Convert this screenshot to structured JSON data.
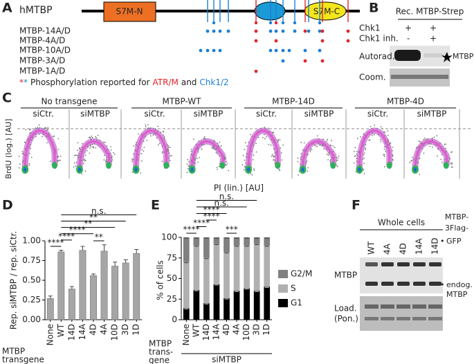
{
  "panel_labels": [
    "A",
    "B",
    "C",
    "D",
    "E",
    "F"
  ],
  "panel_a": {
    "protein": "hMTBP",
    "domains": [
      "S7M-N",
      "S7M-C"
    ],
    "mutants": [
      "MTBP-14A/D",
      "MTBP-4A/D",
      "MTBP-10A/D",
      "MTBP-3A/D",
      "MTBP-1A/D"
    ],
    "legend": {
      "red_star": "*",
      "blue_star": "*",
      "text": "Phosphorylation reported for",
      "kinase_1": "ATR/M",
      "joiner": "and",
      "kinase_2": "Chk1/2"
    }
  },
  "panel_b": {
    "title": "Rec. MTBP-Strep",
    "rows": [
      {
        "label": "Chk1",
        "lanes": [
          "+",
          "+"
        ]
      },
      {
        "label": "Chk1 inh.",
        "lanes": [
          "-",
          "+"
        ]
      }
    ],
    "blots": [
      "Autorad.",
      "Coom."
    ],
    "band": "MTBP"
  },
  "panel_c": {
    "conditions": [
      "No transgene",
      "MTBP-WT",
      "MTBP-14D",
      "MTBP-4D"
    ],
    "treatments": [
      "siCtr.",
      "siMTBP"
    ],
    "y_label": "BrdU (log.) [AU]",
    "x_label": "PI (lin.) [AU]"
  },
  "chart_data": [
    {
      "type": "bar",
      "y_label": "Rep. siMTBP / rep. siCtr.",
      "x_label": [
        "MTBP",
        "transgene"
      ],
      "categories": [
        "None",
        "WT",
        "14D",
        "14A",
        "4D",
        "4A",
        "10D",
        "3D",
        "1D"
      ],
      "values": [
        0.27,
        0.86,
        0.39,
        0.88,
        0.56,
        0.87,
        0.68,
        0.72,
        0.84
      ],
      "errors": [
        0.03,
        0.02,
        0.03,
        0.05,
        0.02,
        0.08,
        0.05,
        0.04,
        0.05
      ],
      "color": "#a6a6a6",
      "ylim": [
        0,
        1
      ],
      "yticks": [
        {
          "value": 0,
          "label": "0.00"
        },
        {
          "value": 0.25,
          "label": "0.25"
        },
        {
          "value": 0.5,
          "label": "0.50"
        },
        {
          "value": 0.75,
          "label": "0.75"
        },
        {
          "value": 1,
          "label": "1.00"
        }
      ],
      "annotations": [
        {
          "text": "****",
          "from": "None",
          "to": "WT"
        },
        {
          "text": "****",
          "from": "WT",
          "to": "14D"
        },
        {
          "text": "**",
          "from": "4D",
          "to": "4A"
        },
        {
          "text": "****",
          "from": "WT",
          "to": "4D"
        },
        {
          "text": "**",
          "from": "WT",
          "to": "10D"
        },
        {
          "text": "**",
          "from": "WT",
          "to": "3D"
        },
        {
          "text": "n.s.",
          "from": "WT",
          "to": "1D"
        }
      ]
    },
    {
      "type": "stacked_bar",
      "y_label": "% of cells",
      "x_label": [
        "MTBP",
        "trans-",
        "gene"
      ],
      "group_label": "siMTBP",
      "categories": [
        "None",
        "WT",
        "14D",
        "14A",
        "4D",
        "4A",
        "10D",
        "3D",
        "1D"
      ],
      "series": [
        {
          "name": "G1",
          "color": "#000000",
          "values": [
            14,
            36,
            20,
            43,
            26,
            35,
            38,
            35,
            40
          ]
        },
        {
          "name": "S",
          "color": "#b0b0b0",
          "values": [
            56,
            54,
            55,
            49,
            56,
            55,
            52,
            57,
            50
          ]
        },
        {
          "name": "G2/M",
          "color": "#808080",
          "values": [
            30,
            10,
            25,
            8,
            18,
            10,
            10,
            8,
            10
          ]
        }
      ],
      "ylim": [
        0,
        100
      ],
      "yticks": [
        0,
        25,
        50,
        75,
        100
      ],
      "annotations": [
        {
          "text": "****",
          "from": "None",
          "to": "WT"
        },
        {
          "text": "****",
          "from": "WT",
          "to": "14D"
        },
        {
          "text": "****",
          "from": "14D",
          "to": "14A"
        },
        {
          "text": "***",
          "from": "4D",
          "to": "4A"
        },
        {
          "text": "****",
          "from": "WT",
          "to": "4D"
        },
        {
          "text": "n.s.",
          "from": "WT",
          "to": "10D"
        },
        {
          "text": "n.s.",
          "from": "WT",
          "to": "3D"
        }
      ]
    }
  ],
  "panel_f": {
    "title": "Whole cells",
    "lanes": [
      "WT",
      "4A",
      "4D",
      "14A",
      "14D"
    ],
    "protein": "MTBP",
    "construct": [
      "MTBP-",
      "3Flag-",
      "GFP"
    ],
    "endogenous": [
      "endog.",
      "MTBP"
    ],
    "loading": [
      "Load.",
      "(Pon.)"
    ],
    "bullet": "•"
  }
}
